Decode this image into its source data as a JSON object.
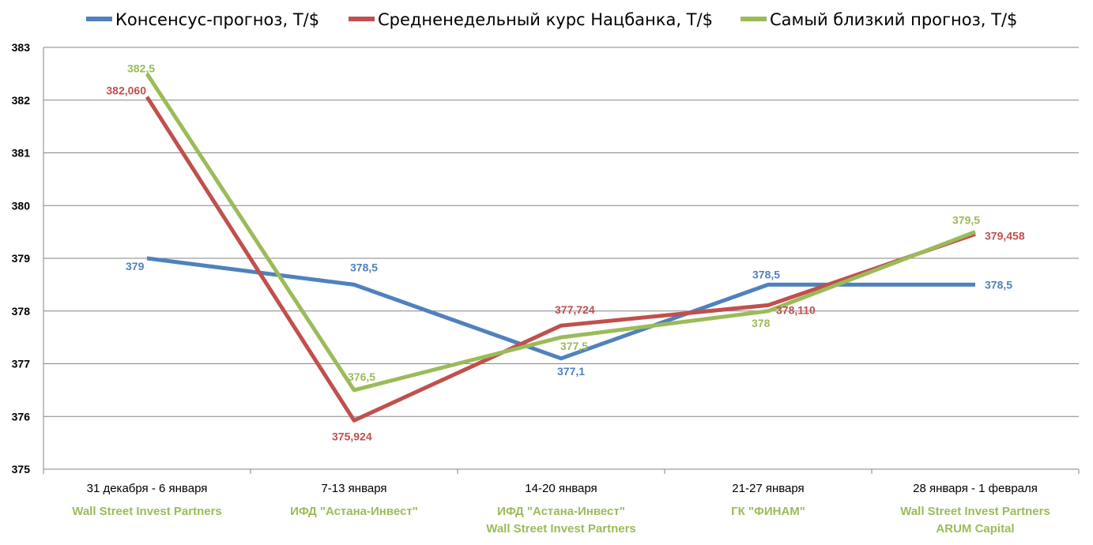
{
  "chart_data": {
    "type": "line",
    "categories": [
      "31 декабря - 6 января",
      "7-13 января",
      "14-20 января",
      "21-27 января",
      "28 января - 1 февраля"
    ],
    "category_sublabels": [
      [
        "Wall Street Invest Partners"
      ],
      [
        "ИФД \"Астана-Инвест\""
      ],
      [
        "ИФД \"Астана-Инвест\"",
        "Wall Street Invest Partners"
      ],
      [
        "ГК \"ФИНАМ\""
      ],
      [
        "Wall Street Invest Partners",
        "ARUM Capital"
      ]
    ],
    "series": [
      {
        "name": "Консенсус-прогноз, Т/$",
        "color": "#4f81bd",
        "values": [
          379,
          378.5,
          377.1,
          378.5,
          378.5
        ],
        "labels": [
          "379",
          "378,5",
          "377,1",
          "378,5",
          "378,5"
        ]
      },
      {
        "name": "Средненедельный курс Нацбанка, Т/$",
        "color": "#c0504d",
        "values": [
          382.06,
          375.924,
          377.724,
          378.11,
          379.458
        ],
        "labels": [
          "382,060",
          "375,924",
          "377,724",
          "378,110",
          "379,458"
        ]
      },
      {
        "name": "Самый близкий прогноз, Т/$",
        "color": "#9bbb59",
        "values": [
          382.5,
          376.5,
          377.5,
          378,
          379.5
        ],
        "labels": [
          "382,5",
          "376,5",
          "377,5",
          "378",
          "379,5"
        ]
      }
    ],
    "ylim": [
      375,
      383
    ],
    "yticks": [
      "375",
      "376",
      "377",
      "378",
      "379",
      "380",
      "381",
      "382",
      "383"
    ],
    "grid": true,
    "legend_position": "top",
    "sublabel_color": "#9bbb59"
  }
}
